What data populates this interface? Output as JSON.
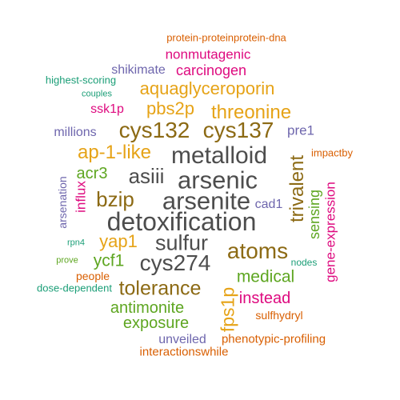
{
  "colors": {
    "dark_gray": "#4d4d4d",
    "brown": "#8c6a14",
    "gold": "#e6a317",
    "green": "#5ea621",
    "magenta": "#de0a7f",
    "orange": "#d95f02",
    "purple": "#6e66ad",
    "teal": "#1b9e77"
  },
  "words": [
    {
      "text": "protein-proteinprotein-dna",
      "color": "orange"
    },
    {
      "text": "nonmutagenic",
      "color": "magenta"
    },
    {
      "text": "shikimate",
      "color": "purple"
    },
    {
      "text": "carcinogen",
      "color": "magenta"
    },
    {
      "text": "highest-scoring",
      "color": "teal"
    },
    {
      "text": "aquaglyceroporin",
      "color": "gold"
    },
    {
      "text": "couples",
      "color": "teal"
    },
    {
      "text": "ssk1p",
      "color": "magenta"
    },
    {
      "text": "pbs2p",
      "color": "gold"
    },
    {
      "text": "threonine",
      "color": "gold"
    },
    {
      "text": "millions",
      "color": "purple"
    },
    {
      "text": "cys132",
      "color": "brown"
    },
    {
      "text": "cys137",
      "color": "brown"
    },
    {
      "text": "pre1",
      "color": "purple"
    },
    {
      "text": "ap-1-like",
      "color": "gold"
    },
    {
      "text": "metalloid",
      "color": "dark_gray"
    },
    {
      "text": "impactby",
      "color": "orange"
    },
    {
      "text": "acr3",
      "color": "green"
    },
    {
      "text": "asiii",
      "color": "dark_gray"
    },
    {
      "text": "arsenic",
      "color": "dark_gray"
    },
    {
      "text": "trivalent",
      "color": "brown"
    },
    {
      "text": "arsenation",
      "color": "purple"
    },
    {
      "text": "influx",
      "color": "magenta"
    },
    {
      "text": "bzip",
      "color": "brown"
    },
    {
      "text": "arsenite",
      "color": "dark_gray"
    },
    {
      "text": "cad1",
      "color": "purple"
    },
    {
      "text": "sensing",
      "color": "green"
    },
    {
      "text": "gene-expression",
      "color": "magenta"
    },
    {
      "text": "detoxification",
      "color": "dark_gray"
    },
    {
      "text": "rpn4",
      "color": "teal"
    },
    {
      "text": "yap1",
      "color": "gold"
    },
    {
      "text": "sulfur",
      "color": "dark_gray"
    },
    {
      "text": "atoms",
      "color": "brown"
    },
    {
      "text": "prove",
      "color": "green"
    },
    {
      "text": "ycf1",
      "color": "green"
    },
    {
      "text": "cys274",
      "color": "dark_gray"
    },
    {
      "text": "nodes",
      "color": "teal"
    },
    {
      "text": "medical",
      "color": "green"
    },
    {
      "text": "people",
      "color": "orange"
    },
    {
      "text": "dose-dependent",
      "color": "teal"
    },
    {
      "text": "tolerance",
      "color": "brown"
    },
    {
      "text": "fps1p",
      "color": "gold"
    },
    {
      "text": "instead",
      "color": "magenta"
    },
    {
      "text": "antimonite",
      "color": "green"
    },
    {
      "text": "sulfhydryl",
      "color": "orange"
    },
    {
      "text": "exposure",
      "color": "green"
    },
    {
      "text": "unveiled",
      "color": "purple"
    },
    {
      "text": "phenotypic-profiling",
      "color": "orange"
    },
    {
      "text": "interactionswhile",
      "color": "orange"
    }
  ]
}
